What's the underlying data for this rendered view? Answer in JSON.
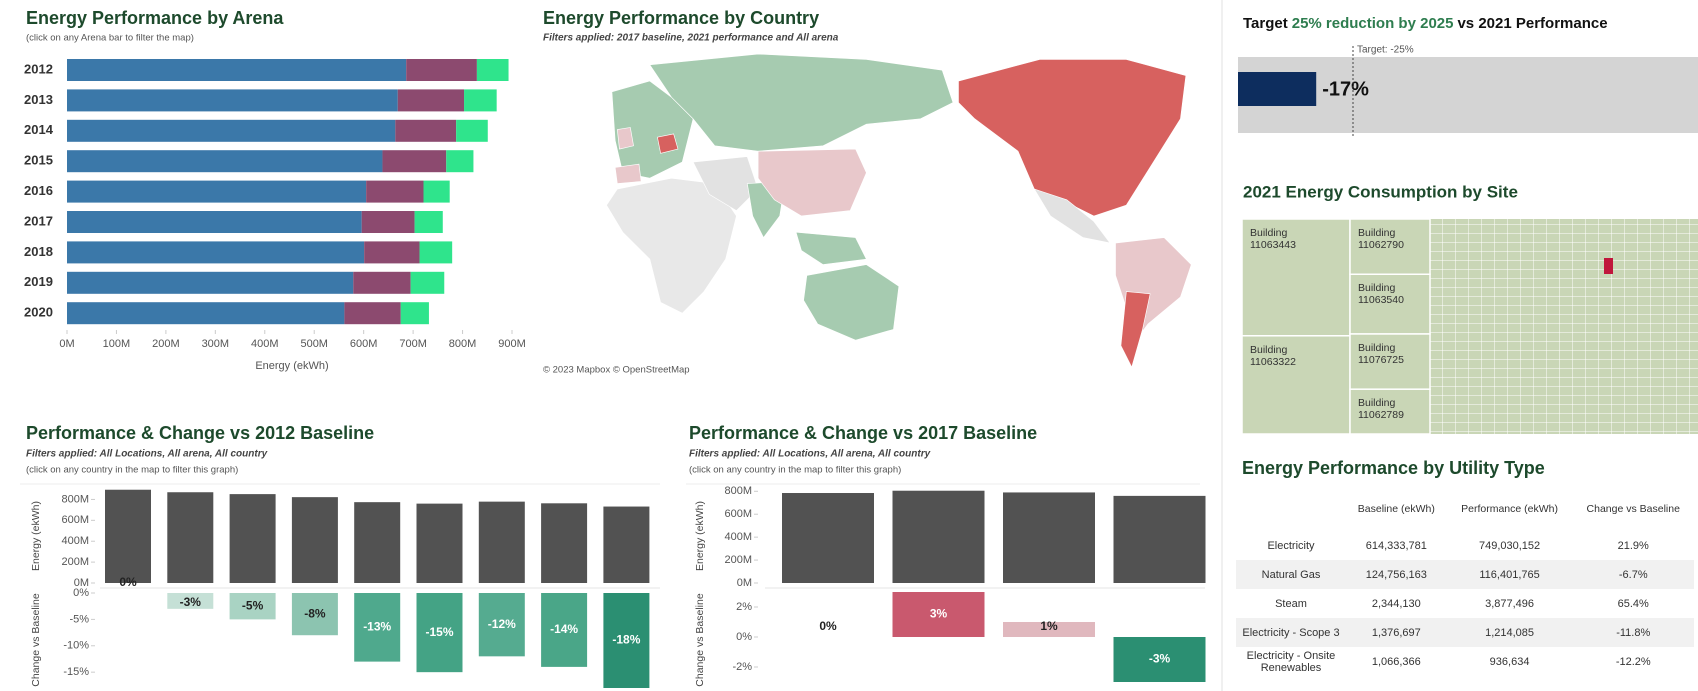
{
  "chart_data": [
    {
      "type": "stacked-hbar",
      "title": "Energy Performance by Arena",
      "subtitle": "(click on any Arena bar to filter the map)",
      "categories": [
        "2012",
        "2013",
        "2014",
        "2015",
        "2016",
        "2017",
        "2018",
        "2019",
        "2020"
      ],
      "series": [
        {
          "color": "#3b78a9",
          "values": [
            686,
            669,
            664,
            638,
            605,
            596,
            601,
            579,
            561
          ]
        },
        {
          "color": "#8c4a6f",
          "values": [
            143,
            134,
            123,
            129,
            116,
            107,
            112,
            116,
            114
          ]
        },
        {
          "color": "#2fe48c",
          "values": [
            64,
            66,
            64,
            55,
            53,
            57,
            66,
            68,
            57
          ]
        }
      ],
      "xlim": [
        0,
        900
      ],
      "xticks": [
        {
          "value": 0,
          "label": "0M"
        },
        {
          "value": 100,
          "label": "100M"
        },
        {
          "value": 200,
          "label": "200M"
        },
        {
          "value": 300,
          "label": "300M"
        },
        {
          "value": 400,
          "label": "400M"
        },
        {
          "value": 500,
          "label": "500M"
        },
        {
          "value": 600,
          "label": "600M"
        },
        {
          "value": 700,
          "label": "700M"
        },
        {
          "value": 800,
          "label": "800M"
        },
        {
          "value": 900,
          "label": "900M"
        }
      ],
      "xlabel": "Energy (ekWh)"
    },
    {
      "type": "map",
      "title": "Energy Performance by Country",
      "subtitle": "Filters applied: 2017 baseline, 2021 performance and All arena",
      "attribution": "© 2023 Mapbox © OpenStreetMap"
    },
    {
      "type": "bullet",
      "title": [
        "Target",
        "25% reduction by 2025",
        "vs 2021 Performance"
      ],
      "value": -17,
      "value_label": "-17%",
      "target": -25,
      "target_label": "Target: -25%",
      "xlim": [
        0,
        -100
      ],
      "color": "#0d2d5e"
    },
    {
      "type": "treemap",
      "title": "2021 Energy Consumption by Site",
      "color": "#c9d6b6",
      "labels": [
        "Building 11063443",
        "Building 11063322",
        "Building 11062790",
        "Building 11063540",
        "Building 11076725",
        "Building 11062789"
      ],
      "values": [
        107,
        90,
        37,
        40,
        37,
        30
      ]
    },
    {
      "type": "table",
      "title": "Energy Performance by Utility Type",
      "columns": [
        "Baseline (ekWh)",
        "Performance (ekWh)",
        "Change vs Baseline"
      ],
      "rows": [
        [
          "Electricity",
          "614,333,781",
          "749,030,152",
          "21.9%"
        ],
        [
          "Natural Gas",
          "124,756,163",
          "116,401,765",
          "-6.7%"
        ],
        [
          "Steam",
          "2,344,130",
          "3,877,496",
          "65.4%"
        ],
        [
          "Electricity - Scope 3",
          "1,376,697",
          "1,214,085",
          "-11.8%"
        ],
        [
          "Electricity - Onsite Renewables",
          "1,066,366",
          "936,634",
          "-12.2%"
        ]
      ]
    },
    {
      "type": "baseline",
      "title": "Performance & Change vs 2012 Baseline",
      "subtitle": "Filters applied: All Locations,  All arena, All country",
      "note": "(click on any country in the map to filter this graph)",
      "panels": [
        {
          "ylabel": "Energy (ekWh)",
          "color": "#525252",
          "values": [
            893,
            869,
            851,
            822,
            774,
            760,
            779,
            763,
            732
          ],
          "ylim": [
            0,
            900
          ],
          "yticks": [
            {
              "value": 0,
              "label": "0M"
            },
            {
              "value": 200,
              "label": "200M"
            },
            {
              "value": 400,
              "label": "400M"
            },
            {
              "value": 600,
              "label": "600M"
            },
            {
              "value": 800,
              "label": "800M"
            }
          ]
        },
        {
          "ylabel": "Change vs Baseline",
          "values": [
            0,
            -3,
            -5,
            -8,
            -13,
            -15,
            -12,
            -14,
            -18
          ],
          "value_labels": [
            "0%",
            "-3%",
            "-5%",
            "-8%",
            "-13%",
            "-15%",
            "-12%",
            "-14%",
            "-18%"
          ],
          "colors": [
            "#c5e0d6",
            "#c5e0d6",
            "#a9d3c3",
            "#8cc4b0",
            "#4fa98d",
            "#44a385",
            "#55ab90",
            "#4aa688",
            "#2b8f72"
          ],
          "ylim": [
            -18,
            0
          ],
          "yticks": [
            {
              "value": 0,
              "label": "0%"
            },
            {
              "value": -5,
              "label": "-5%"
            },
            {
              "value": -10,
              "label": "-10%"
            },
            {
              "value": -15,
              "label": "-15%"
            }
          ]
        }
      ]
    },
    {
      "type": "baseline",
      "title": "Performance & Change vs 2017 Baseline",
      "subtitle": "Filters applied: All Locations,  All arena, All country",
      "note": "(click on any country in the map to filter this graph)",
      "panels": [
        {
          "ylabel": "Energy (ekWh)",
          "color": "#525252",
          "values": [
            785,
            805,
            790,
            760
          ],
          "ylim": [
            0,
            820
          ],
          "yticks": [
            {
              "value": 0,
              "label": "0M"
            },
            {
              "value": 200,
              "label": "200M"
            },
            {
              "value": 400,
              "label": "400M"
            },
            {
              "value": 600,
              "label": "600M"
            },
            {
              "value": 800,
              "label": "800M"
            }
          ]
        },
        {
          "ylabel": "Change vs Baseline",
          "values": [
            0,
            3,
            1,
            -3
          ],
          "value_labels": [
            "0%",
            "3%",
            "1%",
            "-3%"
          ],
          "colors": [
            "#e9e9e9",
            "#c9596e",
            "#e0b8be",
            "#2b8f72"
          ],
          "ylim": [
            -3,
            3
          ],
          "yticks": [
            {
              "value": 2,
              "label": "2%"
            },
            {
              "value": 0,
              "label": "0%"
            },
            {
              "value": -2,
              "label": "-2%"
            }
          ]
        }
      ]
    }
  ]
}
